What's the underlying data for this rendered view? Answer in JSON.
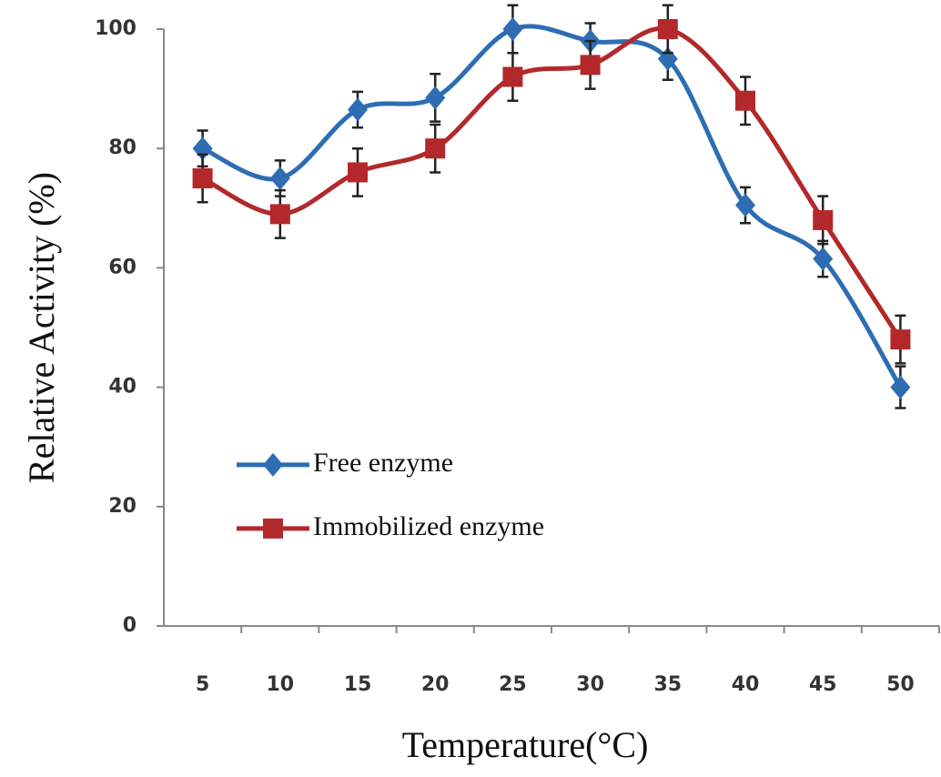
{
  "chart_data": {
    "type": "line",
    "x_label": "Temperature(°C)",
    "y_label": "Relative Activity (%)",
    "categories": [
      "5",
      "10",
      "15",
      "20",
      "25",
      "30",
      "35",
      "40",
      "45",
      "50"
    ],
    "series": [
      {
        "name": "Free enzyme",
        "color": "#2e6db4",
        "marker": "diamond",
        "values": [
          80,
          75,
          86.5,
          88.5,
          100,
          98,
          95,
          70.5,
          61.5,
          40
        ],
        "errors": [
          3,
          3,
          3,
          4,
          4,
          3,
          3.5,
          3,
          3,
          3.5
        ]
      },
      {
        "name": "Immobilized enzyme",
        "color": "#b3292b",
        "marker": "square",
        "values": [
          75,
          69,
          76,
          80,
          92,
          94,
          100,
          88,
          68,
          48
        ],
        "errors": [
          4,
          4,
          4,
          4,
          4,
          4,
          4,
          4,
          4,
          4
        ]
      }
    ],
    "ylim": [
      0,
      100
    ],
    "yticks": [
      0,
      20,
      40,
      60,
      80,
      100
    ],
    "smooth": true,
    "error_bars": true,
    "legend": "lower left"
  }
}
